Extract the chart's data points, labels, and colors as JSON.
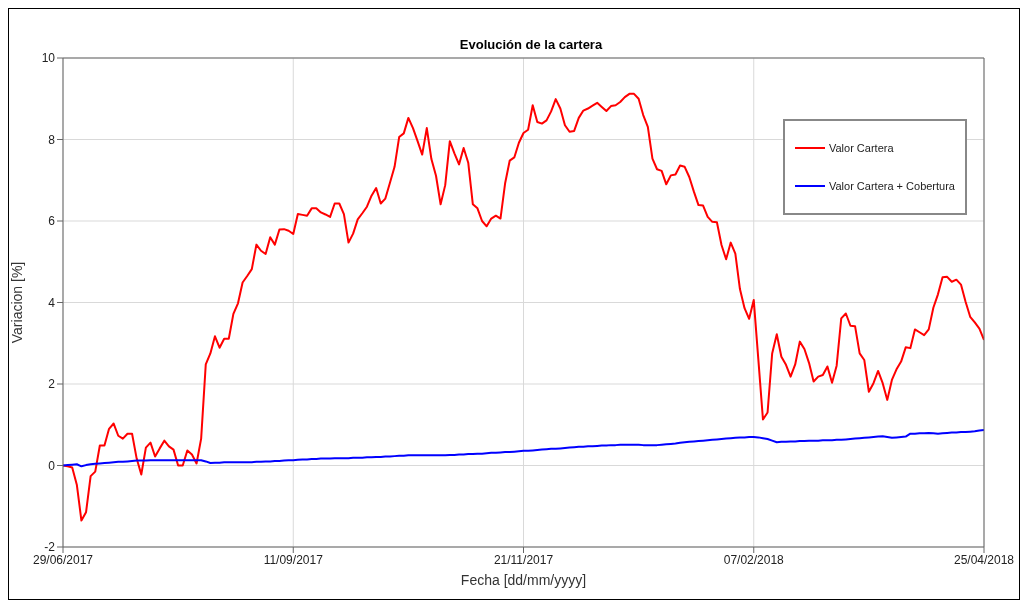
{
  "chart_data": {
    "type": "line",
    "title": "Evolución de la cartera",
    "xlabel": "Fecha [dd/mm/yyyy]",
    "ylabel": "Variacion [%]",
    "categories": [
      "29/06/2017",
      null,
      null,
      null,
      null,
      null,
      null,
      null,
      null,
      null,
      null,
      null,
      null,
      null,
      null,
      null,
      null,
      null,
      null,
      null,
      null,
      null,
      null,
      null,
      null,
      null,
      null,
      null,
      null,
      null,
      null,
      null,
      null,
      null,
      null,
      null,
      null,
      null,
      null,
      null,
      null,
      null,
      null,
      null,
      null,
      null,
      null,
      null,
      null,
      null,
      "11/09/2017",
      null,
      null,
      null,
      null,
      null,
      null,
      null,
      null,
      null,
      null,
      null,
      null,
      null,
      null,
      null,
      null,
      null,
      null,
      null,
      null,
      null,
      null,
      null,
      null,
      null,
      null,
      null,
      null,
      null,
      null,
      null,
      null,
      null,
      null,
      null,
      null,
      null,
      null,
      null,
      null,
      null,
      null,
      null,
      null,
      null,
      null,
      null,
      null,
      null,
      "21/11/2017",
      null,
      null,
      null,
      null,
      null,
      null,
      null,
      null,
      null,
      null,
      null,
      null,
      null,
      null,
      null,
      null,
      null,
      null,
      null,
      null,
      null,
      null,
      null,
      null,
      null,
      null,
      null,
      null,
      null,
      null,
      null,
      null,
      null,
      null,
      null,
      null,
      null,
      null,
      null,
      null,
      null,
      null,
      null,
      null,
      null,
      null,
      null,
      null,
      null,
      "07/02/2018",
      null,
      null,
      null,
      null,
      null,
      null,
      null,
      null,
      null,
      null,
      null,
      null,
      null,
      null,
      null,
      null,
      null,
      null,
      null,
      null,
      null,
      null,
      null,
      null,
      null,
      null,
      null,
      null,
      null,
      null,
      null,
      null,
      null,
      null,
      null,
      null,
      null,
      null,
      null,
      null,
      null,
      null,
      null,
      null,
      null,
      null,
      null,
      null,
      null,
      "25/04/2018"
    ],
    "ylim": [
      -2,
      10
    ],
    "yticks": [
      -2,
      0,
      2,
      4,
      6,
      8,
      10
    ],
    "grid": true,
    "legend": "top right",
    "line_style": "solid",
    "marker": "none",
    "series": [
      {
        "name": "Valor Cartera",
        "color": "#ff0000",
        "values": [
          0,
          -0.02,
          -0.05,
          -0.47,
          -1.35,
          -1.15,
          -0.26,
          -0.15,
          0.49,
          0.49,
          0.9,
          1.03,
          0.73,
          0.66,
          0.78,
          0.78,
          0.17,
          -0.22,
          0.44,
          0.56,
          0.22,
          0.42,
          0.61,
          0.47,
          0.39,
          0,
          0,
          0.37,
          0.27,
          0.05,
          0.66,
          2.48,
          2.75,
          3.17,
          2.89,
          3.11,
          3.11,
          3.72,
          3.98,
          4.49,
          4.65,
          4.82,
          5.42,
          5.27,
          5.19,
          5.6,
          5.42,
          5.79,
          5.8,
          5.76,
          5.68,
          6.17,
          6.15,
          6.13,
          6.31,
          6.31,
          6.21,
          6.16,
          6.1,
          6.43,
          6.43,
          6.17,
          5.47,
          5.69,
          6.04,
          6.19,
          6.35,
          6.62,
          6.81,
          6.43,
          6.55,
          6.94,
          7.33,
          8.06,
          8.15,
          8.53,
          8.28,
          7.96,
          7.63,
          8.28,
          7.52,
          7.11,
          6.41,
          6.88,
          7.96,
          7.66,
          7.39,
          7.79,
          7.43,
          6.41,
          6.31,
          6.0,
          5.87,
          6.06,
          6.13,
          6.06,
          6.92,
          7.48,
          7.56,
          7.92,
          8.16,
          8.24,
          8.84,
          8.43,
          8.39,
          8.47,
          8.69,
          8.99,
          8.76,
          8.35,
          8.19,
          8.21,
          8.53,
          8.71,
          8.76,
          8.83,
          8.9,
          8.8,
          8.7,
          8.82,
          8.84,
          8.92,
          9.04,
          9.12,
          9.12,
          9.0,
          8.6,
          8.31,
          7.53,
          7.27,
          7.23,
          6.9,
          7.12,
          7.14,
          7.36,
          7.33,
          7.08,
          6.72,
          6.39,
          6.38,
          6.1,
          5.98,
          5.97,
          5.41,
          5.06,
          5.47,
          5.2,
          4.33,
          3.86,
          3.6,
          4.06,
          2.6,
          1.13,
          1.3,
          2.75,
          3.22,
          2.67,
          2.47,
          2.18,
          2.48,
          3.04,
          2.86,
          2.52,
          2.06,
          2.18,
          2.22,
          2.43,
          2.03,
          2.45,
          3.61,
          3.73,
          3.43,
          3.42,
          2.75,
          2.59,
          1.81,
          2.02,
          2.32,
          2.02,
          1.61,
          2.1,
          2.36,
          2.55,
          2.9,
          2.88,
          3.34,
          3.27,
          3.2,
          3.34,
          3.87,
          4.2,
          4.62,
          4.63,
          4.51,
          4.56,
          4.44,
          4.02,
          3.65,
          3.51,
          3.36,
          3.08
        ]
      },
      {
        "name": "Valor Cartera + Cobertura",
        "color": "#0000ff",
        "values": [
          0,
          0.01,
          0.02,
          0.03,
          -0.02,
          0.01,
          0.03,
          0.04,
          0.05,
          0.06,
          0.07,
          0.08,
          0.09,
          0.09,
          0.1,
          0.11,
          0.12,
          0.12,
          0.12,
          0.13,
          0.13,
          0.13,
          0.13,
          0.13,
          0.13,
          0.13,
          0.13,
          0.13,
          0.13,
          0.13,
          0.13,
          0.1,
          0.06,
          0.07,
          0.07,
          0.08,
          0.08,
          0.08,
          0.08,
          0.08,
          0.08,
          0.08,
          0.09,
          0.09,
          0.1,
          0.1,
          0.11,
          0.11,
          0.12,
          0.13,
          0.13,
          0.14,
          0.15,
          0.15,
          0.16,
          0.16,
          0.17,
          0.17,
          0.17,
          0.18,
          0.18,
          0.18,
          0.18,
          0.19,
          0.19,
          0.19,
          0.2,
          0.2,
          0.21,
          0.21,
          0.22,
          0.22,
          0.23,
          0.24,
          0.24,
          0.25,
          0.25,
          0.25,
          0.25,
          0.25,
          0.25,
          0.25,
          0.25,
          0.25,
          0.26,
          0.26,
          0.27,
          0.27,
          0.28,
          0.28,
          0.29,
          0.29,
          0.3,
          0.31,
          0.31,
          0.32,
          0.33,
          0.33,
          0.34,
          0.35,
          0.36,
          0.36,
          0.37,
          0.38,
          0.39,
          0.4,
          0.41,
          0.41,
          0.42,
          0.43,
          0.44,
          0.45,
          0.46,
          0.46,
          0.47,
          0.47,
          0.48,
          0.49,
          0.49,
          0.5,
          0.5,
          0.51,
          0.51,
          0.51,
          0.51,
          0.51,
          0.5,
          0.5,
          0.5,
          0.5,
          0.51,
          0.52,
          0.53,
          0.54,
          0.56,
          0.57,
          0.58,
          0.59,
          0.6,
          0.61,
          0.62,
          0.63,
          0.64,
          0.65,
          0.66,
          0.67,
          0.68,
          0.69,
          0.69,
          0.7,
          0.7,
          0.69,
          0.67,
          0.65,
          0.61,
          0.57,
          0.58,
          0.58,
          0.59,
          0.59,
          0.6,
          0.6,
          0.61,
          0.61,
          0.61,
          0.62,
          0.62,
          0.62,
          0.63,
          0.63,
          0.64,
          0.65,
          0.66,
          0.67,
          0.68,
          0.69,
          0.7,
          0.71,
          0.72,
          0.7,
          0.68,
          0.69,
          0.7,
          0.71,
          0.78,
          0.78,
          0.79,
          0.79,
          0.8,
          0.79,
          0.78,
          0.79,
          0.8,
          0.81,
          0.81,
          0.82,
          0.82,
          0.83,
          0.84,
          0.86,
          0.87
        ]
      }
    ]
  }
}
